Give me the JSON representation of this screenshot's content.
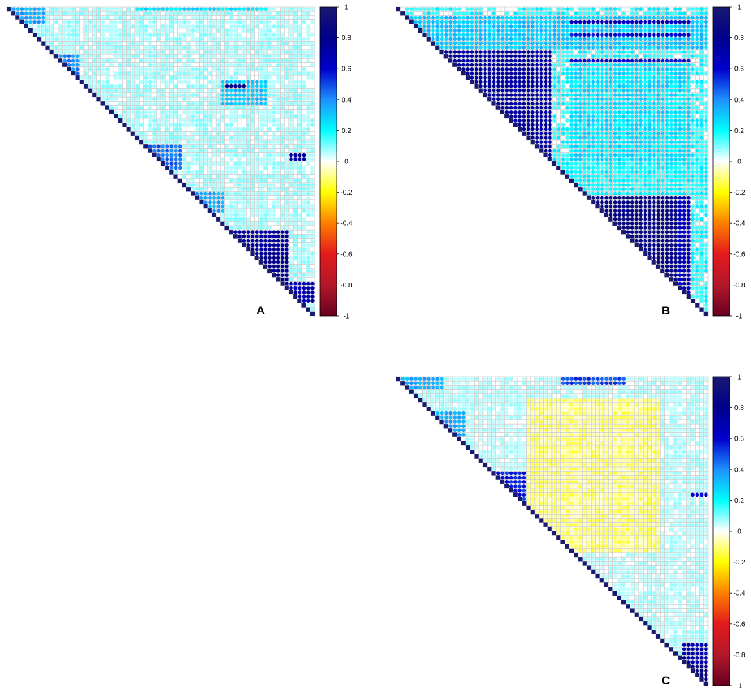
{
  "figure": {
    "colors": {
      "scale": [
        "#67001F",
        "#B2182B",
        "#E31A1C",
        "#FF7F00",
        "#FFFF00",
        "#FFFFFF",
        "#00FFFF",
        "#1E90FF",
        "#0000CD",
        "#00008B",
        "#191970"
      ],
      "grid_line": "#BDBDBD",
      "text": "#000000"
    }
  },
  "chart_data": [
    {
      "panel": "A",
      "type": "heatmap",
      "subtype": "upper-triangular correlation matrix (circle glyphs)",
      "n_variables": 72,
      "value_range": [
        -1,
        1
      ],
      "legend": {
        "position": "right",
        "ticks": [
          1,
          0.8,
          0.6,
          0.4,
          0.2,
          0,
          -0.2,
          -0.4,
          -0.6,
          -0.8,
          -1
        ],
        "tick_labels": [
          "1",
          "0.8",
          "0.6",
          "0.4",
          "0.2",
          "0",
          "-0.2",
          "-0.4",
          "-0.6",
          "-0.8",
          "-1"
        ]
      },
      "grid": true,
      "diagonal_value": 1,
      "background_value": 0.06,
      "approx_blocks": [
        {
          "rows": [
            52,
            57
          ],
          "cols": [
            52,
            65
          ],
          "value": 0.75
        },
        {
          "rows": [
            58,
            63
          ],
          "cols": [
            58,
            65
          ],
          "value": 0.8
        },
        {
          "rows": [
            64,
            68
          ],
          "cols": [
            64,
            71
          ],
          "value": 0.7
        },
        {
          "rows": [
            32,
            37
          ],
          "cols": [
            32,
            40
          ],
          "value": 0.45
        },
        {
          "rows": [
            11,
            15
          ],
          "cols": [
            11,
            16
          ],
          "value": 0.4
        },
        {
          "rows": [
            43,
            47
          ],
          "cols": [
            43,
            50
          ],
          "value": 0.35
        },
        {
          "rows": [
            17,
            22
          ],
          "cols": [
            50,
            60
          ],
          "value": 0.3
        },
        {
          "rows": [
            34,
            35
          ],
          "cols": [
            66,
            69
          ],
          "value": 0.75
        },
        {
          "rows": [
            18,
            18
          ],
          "cols": [
            51,
            55
          ],
          "value": 0.85
        },
        {
          "rows": [
            0,
            3
          ],
          "cols": [
            0,
            8
          ],
          "value": 0.35
        },
        {
          "rows": [
            0,
            0
          ],
          "cols": [
            30,
            60
          ],
          "value": 0.25
        }
      ]
    },
    {
      "panel": "B",
      "type": "heatmap",
      "subtype": "upper-triangular correlation matrix (circle glyphs)",
      "n_variables": 72,
      "value_range": [
        -1,
        1
      ],
      "legend": {
        "position": "right",
        "ticks": [
          1,
          0.8,
          0.6,
          0.4,
          0.2,
          0,
          -0.2,
          -0.4,
          -0.6,
          -0.8,
          -1
        ],
        "tick_labels": [
          "1",
          "0.8",
          "0.6",
          "0.4",
          "0.2",
          "0",
          "-0.2",
          "-0.4",
          "-0.6",
          "-0.8",
          "-1"
        ]
      },
      "grid": true,
      "diagonal_value": 1,
      "background_value": 0.15,
      "approx_blocks": [
        {
          "rows": [
            8,
            35
          ],
          "cols": [
            8,
            35
          ],
          "value": 0.75
        },
        {
          "rows": [
            44,
            69
          ],
          "cols": [
            44,
            64
          ],
          "value": 0.85
        },
        {
          "rows": [
            44,
            69
          ],
          "cols": [
            65,
            67
          ],
          "value": 0.65
        },
        {
          "rows": [
            2,
            9
          ],
          "cols": [
            0,
            71
          ],
          "value": 0.3
        },
        {
          "rows": [
            12,
            41
          ],
          "cols": [
            40,
            67
          ],
          "value": 0.25
        },
        {
          "rows": [
            3,
            3
          ],
          "cols": [
            40,
            67
          ],
          "value": 0.65
        },
        {
          "rows": [
            6,
            6
          ],
          "cols": [
            40,
            67
          ],
          "value": 0.6
        },
        {
          "rows": [
            12,
            12
          ],
          "cols": [
            40,
            67
          ],
          "value": 0.6
        },
        {
          "rows": [
            36,
            43
          ],
          "cols": [
            36,
            71
          ],
          "value": 0.2
        }
      ]
    },
    {
      "panel": "C",
      "type": "heatmap",
      "subtype": "upper-triangular correlation matrix (circle glyphs)",
      "n_variables": 72,
      "value_range": [
        -1,
        1
      ],
      "legend": {
        "position": "right",
        "ticks": [
          1,
          0.8,
          0.6,
          0.4,
          0.2,
          0,
          -0.2,
          -0.4,
          -0.6,
          -0.8,
          -1
        ],
        "tick_labels": [
          "1",
          "0.8",
          "0.6",
          "0.4",
          "0.2",
          "0",
          "-0.2",
          "-0.4",
          "-0.6",
          "-0.8",
          "-1"
        ]
      },
      "grid": true,
      "diagonal_value": 1,
      "background_value": 0.05,
      "approx_blocks": [
        {
          "rows": [
            22,
            30
          ],
          "cols": [
            22,
            30
          ],
          "value": 0.55
        },
        {
          "rows": [
            22,
            30
          ],
          "cols": [
            35,
            45
          ],
          "value": 0.5
        },
        {
          "rows": [
            36,
            42
          ],
          "cols": [
            36,
            40
          ],
          "value": 0.55
        },
        {
          "rows": [
            8,
            13
          ],
          "cols": [
            8,
            15
          ],
          "value": 0.35
        },
        {
          "rows": [
            0,
            2
          ],
          "cols": [
            0,
            10
          ],
          "value": 0.35
        },
        {
          "rows": [
            0,
            1
          ],
          "cols": [
            38,
            52
          ],
          "value": 0.5
        },
        {
          "rows": [
            27,
            27
          ],
          "cols": [
            68,
            71
          ],
          "value": 0.6
        },
        {
          "rows": [
            62,
            66
          ],
          "cols": [
            66,
            71
          ],
          "value": 0.7
        },
        {
          "rows": [
            67,
            71
          ],
          "cols": [
            67,
            71
          ],
          "value": 0.85
        },
        {
          "rows": [
            5,
            40
          ],
          "cols": [
            30,
            60
          ],
          "value": -0.1
        }
      ]
    }
  ]
}
